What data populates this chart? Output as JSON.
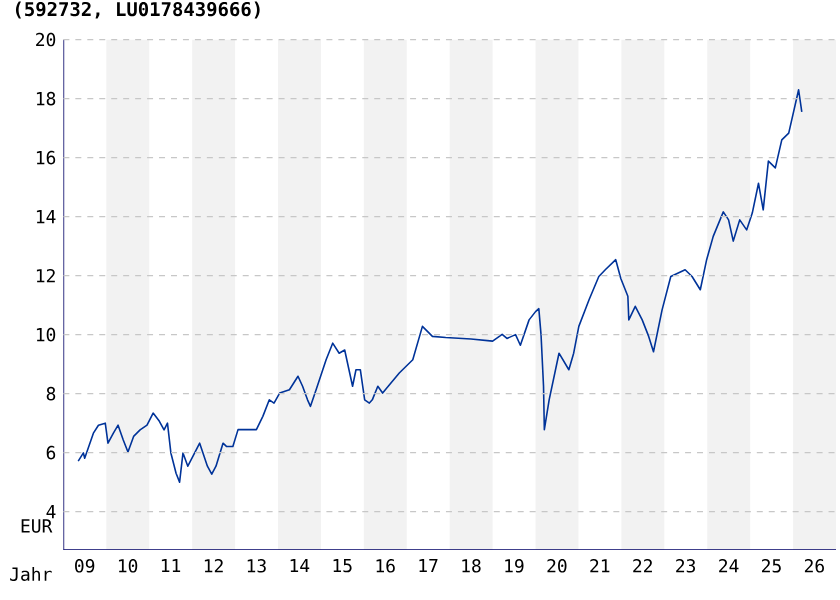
{
  "chart_data": {
    "type": "line",
    "title": "(592732, LU0178439666)",
    "xlabel": "Jahr",
    "ylabel": "EUR",
    "xlim": [
      "2009-01-01",
      "2027-01-01"
    ],
    "ylim": [
      2.7,
      20
    ],
    "xticks": [
      {
        "value": "2009-07-01",
        "label": "09"
      },
      {
        "value": "2010-07-01",
        "label": "10"
      },
      {
        "value": "2011-07-01",
        "label": "11"
      },
      {
        "value": "2012-07-01",
        "label": "12"
      },
      {
        "value": "2013-07-01",
        "label": "13"
      },
      {
        "value": "2014-07-01",
        "label": "14"
      },
      {
        "value": "2015-07-01",
        "label": "15"
      },
      {
        "value": "2016-07-01",
        "label": "16"
      },
      {
        "value": "2017-07-01",
        "label": "17"
      },
      {
        "value": "2018-07-01",
        "label": "18"
      },
      {
        "value": "2019-07-01",
        "label": "19"
      },
      {
        "value": "2020-07-01",
        "label": "20"
      },
      {
        "value": "2021-07-01",
        "label": "21"
      },
      {
        "value": "2022-07-01",
        "label": "22"
      },
      {
        "value": "2023-07-01",
        "label": "23"
      },
      {
        "value": "2024-07-01",
        "label": "24"
      },
      {
        "value": "2025-07-01",
        "label": "25"
      },
      {
        "value": "2026-07-01",
        "label": "26"
      }
    ],
    "yticks": [
      4,
      6,
      8,
      10,
      12,
      14,
      16,
      18,
      20
    ],
    "grid": "y",
    "marker": "none",
    "line_style": "solid",
    "bands": [
      {
        "axis": "x",
        "from": "2010-01-01",
        "to": "2011-01-01",
        "color": "#f2f2f2"
      },
      {
        "axis": "x",
        "from": "2012-01-01",
        "to": "2013-01-01",
        "color": "#f2f2f2"
      },
      {
        "axis": "x",
        "from": "2014-01-01",
        "to": "2015-01-01",
        "color": "#f2f2f2"
      },
      {
        "axis": "x",
        "from": "2016-01-01",
        "to": "2017-01-01",
        "color": "#f2f2f2"
      },
      {
        "axis": "x",
        "from": "2018-01-01",
        "to": "2019-01-01",
        "color": "#f2f2f2"
      },
      {
        "axis": "x",
        "from": "2020-01-01",
        "to": "2021-01-01",
        "color": "#f2f2f2"
      },
      {
        "axis": "x",
        "from": "2022-01-01",
        "to": "2023-01-01",
        "color": "#f2f2f2"
      },
      {
        "axis": "x",
        "from": "2024-01-01",
        "to": "2025-01-01",
        "color": "#f2f2f2"
      },
      {
        "axis": "x",
        "from": "2026-01-01",
        "to": "2027-01-01",
        "color": "#f2f2f2"
      }
    ],
    "series": [
      {
        "color": "#003399",
        "x": [
          "2009-05-07",
          "2009-06-20",
          "2009-07-01",
          "2009-09-13",
          "2009-10-26",
          "2009-12-23",
          "2010-01-15",
          "2010-03-02",
          "2010-04-11",
          "2010-05-25",
          "2010-07-04",
          "2010-08-21",
          "2010-10-15",
          "2010-12-13",
          "2011-02-03",
          "2011-03-27",
          "2011-05-07",
          "2011-06-05",
          "2011-07-04",
          "2011-08-17",
          "2011-09-16",
          "2011-10-15",
          "2011-11-25",
          "2012-01-08",
          "2012-03-05",
          "2012-05-10",
          "2012-06-16",
          "2012-07-22",
          "2012-09-20",
          "2012-10-19",
          "2012-12-13",
          "2013-01-26",
          "2013-07-01",
          "2013-08-25",
          "2013-10-19",
          "2013-11-28",
          "2014-01-15",
          "2014-04-08",
          "2014-06-20",
          "2014-07-29",
          "2014-09-09",
          "2014-10-04",
          "2014-11-21",
          "2015-02-14",
          "2015-04-11",
          "2015-06-05",
          "2015-07-22",
          "2015-09-27",
          "2015-10-26",
          "2015-12-02",
          "2016-01-08",
          "2016-02-17",
          "2016-03-13",
          "2016-04-29",
          "2016-06-09",
          "2016-10-29",
          "2017-02-21",
          "2017-05-14",
          "2017-08-07",
          "2017-11-28",
          "2018-07-01",
          "2019-01-01",
          "2019-03-23",
          "2019-05-03",
          "2019-07-15",
          "2019-08-25",
          "2019-11-07",
          "2020-01-01",
          "2020-01-29",
          "2020-02-17",
          "2020-03-09",
          "2020-03-16",
          "2020-04-26",
          "2020-07-19",
          "2020-10-11",
          "2020-11-21",
          "2021-01-04",
          "2021-04-01",
          "2021-06-23",
          "2021-08-17",
          "2021-11-14",
          "2021-12-27",
          "2022-02-25",
          "2022-03-05",
          "2022-04-29",
          "2022-06-27",
          "2022-08-21",
          "2022-10-01",
          "2022-12-13",
          "2023-02-25",
          "2023-06-27",
          "2023-08-25",
          "2023-11-03",
          "2023-12-27",
          "2024-02-21",
          "2024-05-17",
          "2024-07-01",
          "2024-08-10",
          "2024-10-04",
          "2024-12-02",
          "2025-01-19",
          "2025-03-13",
          "2025-04-22",
          "2025-06-05",
          "2025-08-03",
          "2025-09-27",
          "2025-11-25",
          "2026-02-17",
          "2026-03-16"
        ],
        "values": [
          5.71,
          5.99,
          5.81,
          6.66,
          6.93,
          7.0,
          6.32,
          6.66,
          6.93,
          6.43,
          6.02,
          6.55,
          6.77,
          6.93,
          7.34,
          7.07,
          6.77,
          7.0,
          5.99,
          5.3,
          5.0,
          5.99,
          5.54,
          5.88,
          6.32,
          5.54,
          5.27,
          5.54,
          6.32,
          6.21,
          6.21,
          6.78,
          6.78,
          7.23,
          7.79,
          7.68,
          8.02,
          8.13,
          8.59,
          8.25,
          7.79,
          7.57,
          8.13,
          9.15,
          9.71,
          9.37,
          9.48,
          8.25,
          8.81,
          8.81,
          7.79,
          7.68,
          7.79,
          8.25,
          8.02,
          8.7,
          9.15,
          10.28,
          9.94,
          9.9,
          9.85,
          9.78,
          10.01,
          9.87,
          10.0,
          9.64,
          10.5,
          10.78,
          10.88,
          9.99,
          8.25,
          6.78,
          7.79,
          9.37,
          8.81,
          9.37,
          10.28,
          11.18,
          11.97,
          12.2,
          12.54,
          11.9,
          11.3,
          10.5,
          10.96,
          10.5,
          9.94,
          9.42,
          10.84,
          11.97,
          12.2,
          11.97,
          11.52,
          12.54,
          13.33,
          14.16,
          13.89,
          13.17,
          13.89,
          13.55,
          14.12,
          15.13,
          14.23,
          15.88,
          15.65,
          16.6,
          16.83,
          18.3,
          17.55
        ]
      }
    ]
  }
}
